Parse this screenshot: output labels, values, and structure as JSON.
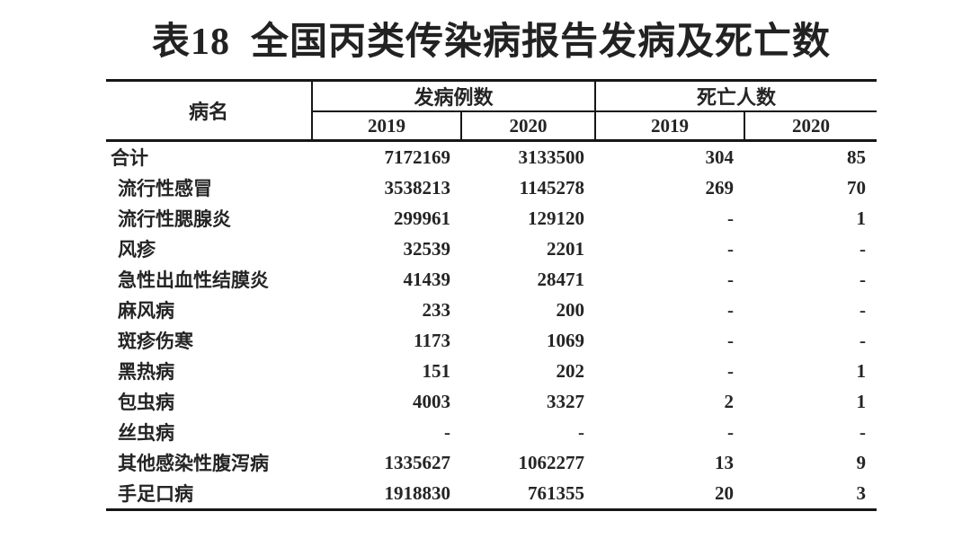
{
  "title": "表18  全国丙类传染病报告发病及死亡数",
  "table": {
    "col_disease": "病名",
    "group_incidence": "发病例数",
    "group_deaths": "死亡人数",
    "years": [
      "2019",
      "2020",
      "2019",
      "2020"
    ],
    "rows": [
      {
        "name": "合计",
        "inc2019": "7172169",
        "inc2020": "3133500",
        "d2019": "304",
        "d2020": "85"
      },
      {
        "name": "流行性感冒",
        "inc2019": "3538213",
        "inc2020": "1145278",
        "d2019": "269",
        "d2020": "70"
      },
      {
        "name": "流行性腮腺炎",
        "inc2019": "299961",
        "inc2020": "129120",
        "d2019": "-",
        "d2020": "1"
      },
      {
        "name": "风疹",
        "inc2019": "32539",
        "inc2020": "2201",
        "d2019": "-",
        "d2020": "-"
      },
      {
        "name": "急性出血性结膜炎",
        "inc2019": "41439",
        "inc2020": "28471",
        "d2019": "-",
        "d2020": "-"
      },
      {
        "name": "麻风病",
        "inc2019": "233",
        "inc2020": "200",
        "d2019": "-",
        "d2020": "-"
      },
      {
        "name": "斑疹伤寒",
        "inc2019": "1173",
        "inc2020": "1069",
        "d2019": "-",
        "d2020": "-"
      },
      {
        "name": "黑热病",
        "inc2019": "151",
        "inc2020": "202",
        "d2019": "-",
        "d2020": "1"
      },
      {
        "name": "包虫病",
        "inc2019": "4003",
        "inc2020": "3327",
        "d2019": "2",
        "d2020": "1"
      },
      {
        "name": "丝虫病",
        "inc2019": "-",
        "inc2020": "-",
        "d2019": "-",
        "d2020": "-"
      },
      {
        "name": "其他感染性腹泻病",
        "inc2019": "1335627",
        "inc2020": "1062277",
        "d2019": "13",
        "d2020": "9"
      },
      {
        "name": "手足口病",
        "inc2019": "1918830",
        "inc2020": "761355",
        "d2019": "20",
        "d2020": "3"
      }
    ]
  },
  "chart_data": {
    "type": "table",
    "title": "表18  全国丙类传染病报告发病及死亡数",
    "column_groups": [
      "病名",
      "发病例数",
      "死亡人数"
    ],
    "columns": [
      "病名",
      "发病例数 2019",
      "发病例数 2020",
      "死亡人数 2019",
      "死亡人数 2020"
    ],
    "rows": [
      [
        "合计",
        "7172169",
        "3133500",
        "304",
        "85"
      ],
      [
        "流行性感冒",
        "3538213",
        "1145278",
        "269",
        "70"
      ],
      [
        "流行性腮腺炎",
        "299961",
        "129120",
        "-",
        "1"
      ],
      [
        "风疹",
        "32539",
        "2201",
        "-",
        "-"
      ],
      [
        "急性出血性结膜炎",
        "41439",
        "28471",
        "-",
        "-"
      ],
      [
        "麻风病",
        "233",
        "200",
        "-",
        "-"
      ],
      [
        "斑疹伤寒",
        "1173",
        "1069",
        "-",
        "-"
      ],
      [
        "黑热病",
        "151",
        "202",
        "-",
        "1"
      ],
      [
        "包虫病",
        "4003",
        "3327",
        "2",
        "1"
      ],
      [
        "丝虫病",
        "-",
        "-",
        "-",
        "-"
      ],
      [
        "其他感染性腹泻病",
        "1335627",
        "1062277",
        "13",
        "9"
      ],
      [
        "手足口病",
        "1918830",
        "761355",
        "20",
        "3"
      ]
    ]
  }
}
